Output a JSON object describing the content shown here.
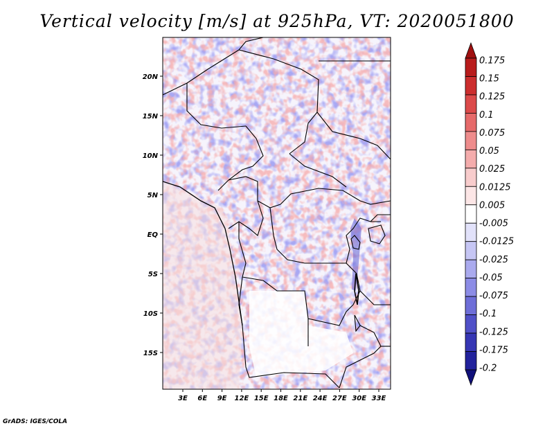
{
  "title": "Vertical velocity [m/s] at 925hPa, VT: 2020051800",
  "credit": "GrADS: IGES/COLA",
  "lat_labels": [
    "20N",
    "15N",
    "10N",
    "5N",
    "EQ",
    "5S",
    "10S",
    "15S"
  ],
  "lon_labels": [
    "3E",
    "6E",
    "9E",
    "12E",
    "15E",
    "18E",
    "21E",
    "24E",
    "27E",
    "30E",
    "33E"
  ],
  "colorbar": {
    "labels": [
      "0.175",
      "0.15",
      "0.125",
      "0.1",
      "0.075",
      "0.05",
      "0.025",
      "0.0125",
      "0.005",
      "-0.005",
      "-0.0125",
      "-0.025",
      "-0.05",
      "-0.075",
      "-0.1",
      "-0.125",
      "-0.175",
      "-0.2"
    ],
    "colors": [
      "#a01010",
      "#b81c1c",
      "#cc2e2e",
      "#dc4a4a",
      "#e66a6a",
      "#ee8c8c",
      "#f4acac",
      "#f8cccc",
      "#fce6e6",
      "#ffffff",
      "#e2e2fa",
      "#c6c6f4",
      "#aaaaee",
      "#8c8ce6",
      "#6e6ed8",
      "#5050c8",
      "#3636b4",
      "#22229c",
      "#10107a"
    ]
  }
}
